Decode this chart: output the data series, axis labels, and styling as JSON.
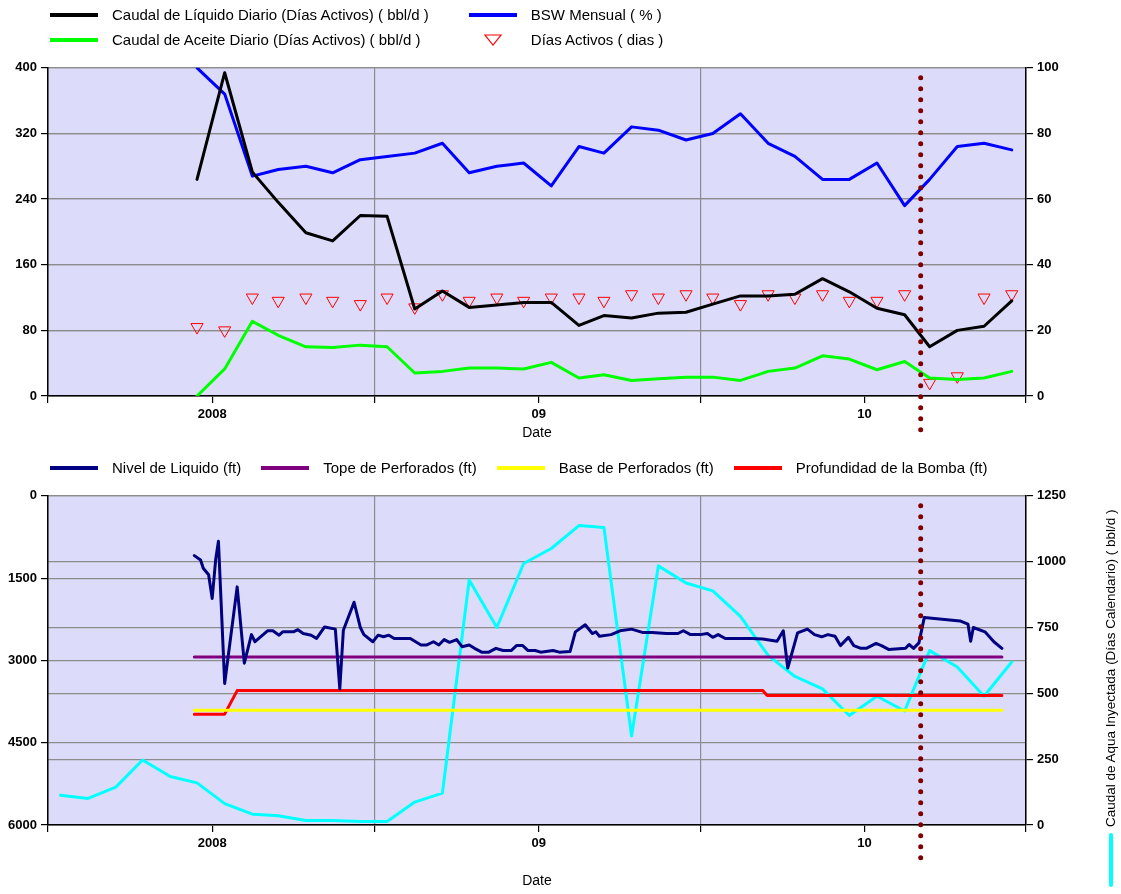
{
  "chart_data": [
    {
      "type": "line",
      "xlabel": "Date",
      "x": [
        "2007-12-15",
        "2008-01-15",
        "2008-02-15",
        "2008-03-15",
        "2008-04-15",
        "2008-05-15",
        "2008-06-15",
        "2008-07-15",
        "2008-08-15",
        "2008-09-15",
        "2008-10-15",
        "2008-11-15",
        "2008-12-15",
        "2009-01-15",
        "2009-02-15",
        "2009-03-15",
        "2009-04-15",
        "2009-05-15",
        "2009-06-15",
        "2009-07-15",
        "2009-08-15",
        "2009-09-15",
        "2009-10-15",
        "2009-11-15",
        "2009-12-15",
        "2010-01-15",
        "2010-02-15",
        "2010-03-15",
        "2010-04-15",
        "2010-05-15",
        "2010-06-15"
      ],
      "xlim": [
        "2007-07-01",
        "2010-07-01"
      ],
      "xticks": [
        {
          "value": "2007-07-01",
          "label": null
        },
        {
          "value": "2008-01-01",
          "label": "2008"
        },
        {
          "value": "2008-07-01",
          "label": null
        },
        {
          "value": "2009-01-01",
          "label": "09"
        },
        {
          "value": "2009-07-01",
          "label": null
        },
        {
          "value": "2010-01-01",
          "label": "10"
        },
        {
          "value": "2010-07-01",
          "label": null
        }
      ],
      "ylim": [
        0,
        400
      ],
      "yticks": [
        0,
        80,
        160,
        240,
        320,
        400
      ],
      "y2lim": [
        0,
        100
      ],
      "y2ticks": [
        0,
        20,
        40,
        60,
        80,
        100
      ],
      "grid": true,
      "legend": "top",
      "ref_lines": [
        {
          "axis": "x",
          "value": "2010-03-05",
          "color": "#800000",
          "line_style": "dotted"
        }
      ],
      "series": [
        {
          "name": "Caudal de Líquido Diario (Días Activos) ( bbl/d )",
          "color": "#000000",
          "values": [
            264,
            394,
            273,
            236,
            199,
            189,
            220,
            219,
            106,
            128,
            108,
            111,
            114,
            114,
            86,
            98,
            95,
            101,
            102,
            112,
            122,
            122,
            124,
            143,
            127,
            107,
            99,
            60,
            80,
            85,
            116
          ]
        },
        {
          "name": "Caudal de Aceite Diario (Días Activos) ( bbl/d )",
          "color": "#00ff00",
          "values": [
            0,
            33,
            91,
            74,
            60,
            59,
            62,
            60,
            28,
            30,
            34,
            34,
            33,
            41,
            22,
            26,
            19,
            21,
            23,
            23,
            19,
            30,
            34,
            49,
            45,
            32,
            42,
            22,
            20,
            22,
            30
          ]
        },
        {
          "name": "BSW Mensual ( % )",
          "color": "#0000ff",
          "axis": "y2",
          "values": [
            100,
            92,
            67,
            69,
            70,
            68,
            72,
            73,
            74,
            77,
            68,
            70,
            71,
            64,
            76,
            74,
            82,
            81,
            78,
            80,
            86,
            77,
            73,
            66,
            66,
            71,
            58,
            66,
            76,
            77,
            75
          ]
        },
        {
          "name": "Días Activos ( dias )",
          "color": "#ff0000",
          "axis": "y2",
          "type": "scatter",
          "marker": "triangle",
          "values": [
            21,
            20,
            30,
            29,
            30,
            29,
            28,
            30,
            27,
            31,
            29,
            30,
            29,
            30,
            30,
            29,
            31,
            30,
            31,
            30,
            28,
            31,
            30,
            31,
            29,
            29,
            31,
            4,
            6,
            30,
            31
          ]
        }
      ]
    },
    {
      "type": "line",
      "xlabel": "Date",
      "y2label": "Caudal de Aqua Inyectada (Días Calendario) ( bbl/d )",
      "xlim": [
        "2007-07-01",
        "2010-07-01"
      ],
      "xticks": [
        {
          "value": "2007-07-01",
          "label": null
        },
        {
          "value": "2008-01-01",
          "label": "2008"
        },
        {
          "value": "2008-07-01",
          "label": null
        },
        {
          "value": "2009-01-01",
          "label": "09"
        },
        {
          "value": "2009-07-01",
          "label": null
        },
        {
          "value": "2010-01-01",
          "label": "10"
        },
        {
          "value": "2010-07-01",
          "label": null
        }
      ],
      "ylim": [
        6000,
        0
      ],
      "yticks": [
        0,
        1500,
        3000,
        4500,
        6000
      ],
      "y2lim": [
        0,
        1250
      ],
      "y2ticks": [
        0,
        250,
        500,
        750,
        1000,
        1250
      ],
      "grid": true,
      "legend": "top",
      "ref_lines": [
        {
          "axis": "x",
          "value": "2010-03-05",
          "color": "#800000",
          "line_style": "dotted"
        }
      ],
      "series": [
        {
          "name": "Nivel de Liquido (ft)",
          "color": "#000080",
          "x": [
            "2007-12-12",
            "2007-12-19",
            "2007-12-22",
            "2007-12-28",
            "2008-01-01",
            "2008-01-05",
            "2008-01-08",
            "2008-01-15",
            "2008-01-29",
            "2008-02-06",
            "2008-02-14",
            "2008-02-18",
            "2008-03-03",
            "2008-03-09",
            "2008-03-16",
            "2008-03-20",
            "2008-04-01",
            "2008-04-06",
            "2008-04-12",
            "2008-04-21",
            "2008-04-27",
            "2008-05-06",
            "2008-05-18",
            "2008-05-23",
            "2008-05-27",
            "2008-06-08",
            "2008-06-15",
            "2008-06-19",
            "2008-06-29",
            "2008-07-05",
            "2008-07-11",
            "2008-07-17",
            "2008-07-23",
            "2008-08-10",
            "2008-08-16",
            "2008-08-22",
            "2008-08-28",
            "2008-09-05",
            "2008-09-11",
            "2008-09-17",
            "2008-09-23",
            "2008-10-01",
            "2008-10-07",
            "2008-10-15",
            "2008-10-21",
            "2008-10-29",
            "2008-11-06",
            "2008-11-14",
            "2008-11-22",
            "2008-12-01",
            "2008-12-07",
            "2008-12-14",
            "2008-12-20",
            "2008-12-28",
            "2009-01-03",
            "2009-01-17",
            "2009-01-24",
            "2009-02-05",
            "2009-02-11",
            "2009-02-22",
            "2009-03-02",
            "2009-03-06",
            "2009-03-10",
            "2009-03-23",
            "2009-04-02",
            "2009-04-15",
            "2009-04-27",
            "2009-05-08",
            "2009-05-24",
            "2009-06-06",
            "2009-06-12",
            "2009-06-20",
            "2009-07-01",
            "2009-07-09",
            "2009-07-15",
            "2009-07-21",
            "2009-07-29",
            "2009-08-28",
            "2009-09-09",
            "2009-09-25",
            "2009-10-02",
            "2009-10-07",
            "2009-10-18",
            "2009-10-29",
            "2009-11-06",
            "2009-11-14",
            "2009-11-21",
            "2009-11-29",
            "2009-12-05",
            "2009-12-14",
            "2009-12-20",
            "2009-12-28",
            "2010-01-03",
            "2010-01-14",
            "2010-01-20",
            "2010-01-28",
            "2010-02-16",
            "2010-02-20",
            "2010-02-25",
            "2010-03-03",
            "2010-03-09",
            "2010-04-18",
            "2010-04-27",
            "2010-04-30",
            "2010-05-03",
            "2010-05-16",
            "2010-05-26",
            "2010-06-04"
          ],
          "values": [
            1090,
            1170,
            1320,
            1440,
            1870,
            1150,
            830,
            3420,
            1660,
            3050,
            2530,
            2660,
            2460,
            2460,
            2540,
            2480,
            2480,
            2440,
            2510,
            2540,
            2600,
            2390,
            2430,
            3520,
            2450,
            1940,
            2400,
            2530,
            2660,
            2540,
            2570,
            2540,
            2600,
            2600,
            2660,
            2720,
            2720,
            2660,
            2720,
            2620,
            2670,
            2620,
            2750,
            2720,
            2780,
            2850,
            2850,
            2780,
            2820,
            2820,
            2730,
            2730,
            2820,
            2820,
            2850,
            2820,
            2850,
            2840,
            2480,
            2350,
            2510,
            2480,
            2560,
            2530,
            2460,
            2430,
            2490,
            2490,
            2510,
            2510,
            2460,
            2530,
            2530,
            2510,
            2580,
            2530,
            2600,
            2600,
            2610,
            2650,
            2460,
            3140,
            2500,
            2430,
            2530,
            2570,
            2530,
            2560,
            2730,
            2580,
            2730,
            2780,
            2780,
            2690,
            2730,
            2800,
            2780,
            2710,
            2780,
            2680,
            2220,
            2280,
            2340,
            2650,
            2400,
            2480,
            2660,
            2780
          ]
        },
        {
          "name": "Tope de Perforados (ft)",
          "color": "#800080",
          "x": [
            "2007-12-12",
            "2010-06-04"
          ],
          "values": [
            2940,
            2940
          ]
        },
        {
          "name": "Base de Perforados (ft)",
          "color": "#ffff00",
          "x": [
            "2007-12-12",
            "2010-06-04"
          ],
          "values": [
            3910,
            3910
          ]
        },
        {
          "name": "Profundidad de la Bomba (ft)",
          "color": "#ff0000",
          "x": [
            "2007-12-12",
            "2008-01-15",
            "2008-01-29",
            "2009-09-09",
            "2009-09-14",
            "2010-06-04"
          ],
          "values": [
            3980,
            3980,
            3550,
            3550,
            3640,
            3640
          ]
        },
        {
          "color": "#00ffff",
          "axis": "y2",
          "x": [
            "2007-07-15",
            "2007-08-15",
            "2007-09-15",
            "2007-10-15",
            "2007-11-15",
            "2007-12-15",
            "2008-01-15",
            "2008-02-15",
            "2008-03-15",
            "2008-04-15",
            "2008-05-15",
            "2008-06-15",
            "2008-07-15",
            "2008-08-15",
            "2008-09-15",
            "2008-10-15",
            "2008-11-15",
            "2008-12-15",
            "2009-01-15",
            "2009-02-15",
            "2009-03-15",
            "2009-04-15",
            "2009-05-15",
            "2009-06-15",
            "2009-07-15",
            "2009-08-15",
            "2009-09-15",
            "2009-10-15",
            "2009-11-15",
            "2009-12-15",
            "2010-01-15",
            "2010-02-15",
            "2010-03-15",
            "2010-04-15",
            "2010-05-15",
            "2010-06-15"
          ],
          "values": [
            113,
            101,
            144,
            247,
            184,
            160,
            81,
            41,
            35,
            17,
            17,
            13,
            13,
            87,
            121,
            930,
            750,
            993,
            1050,
            1137,
            1130,
            338,
            984,
            919,
            889,
            792,
            644,
            564,
            517,
            416,
            489,
            433,
            662,
            600,
            489,
            619
          ]
        }
      ]
    }
  ]
}
